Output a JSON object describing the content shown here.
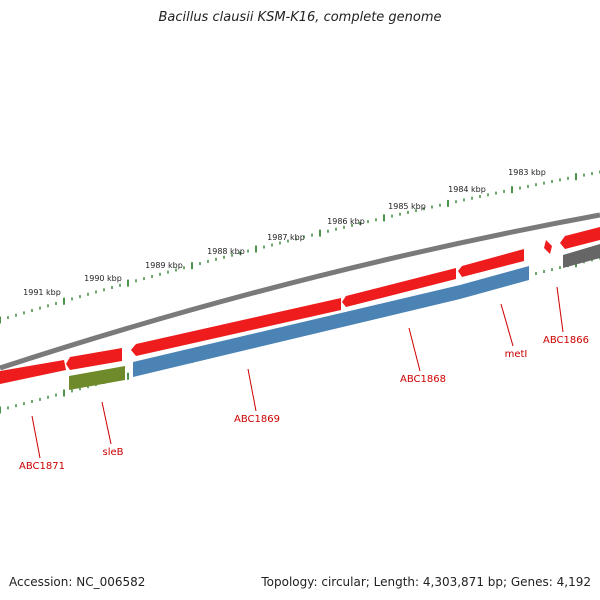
{
  "title": "Bacillus clausii KSM-K16, complete genome",
  "footer": {
    "accession": "Accession: NC_006582",
    "summary": "Topology: circular; Length: 4,303,871 bp; Genes: 4,192"
  },
  "colors": {
    "backbone": "#7a7a7a",
    "tick": "#1f7a1f",
    "gene_red": "#ee1c1c",
    "gene_blue": "#4b83b5",
    "gene_green": "#6f8a2a",
    "gene_gray": "#666666",
    "label_red": "#cc0000"
  },
  "scale_labels": [
    "1991 kbp",
    "1990 kbp",
    "1989 kbp",
    "1988 kbp",
    "1987 kbp",
    "1986 kbp",
    "1985 kbp",
    "1984 kbp",
    "1983 kbp"
  ],
  "gene_labels": [
    "ABC1871",
    "sleB",
    "ABC1869",
    "ABC1868",
    "metI",
    "ABC1866"
  ]
}
